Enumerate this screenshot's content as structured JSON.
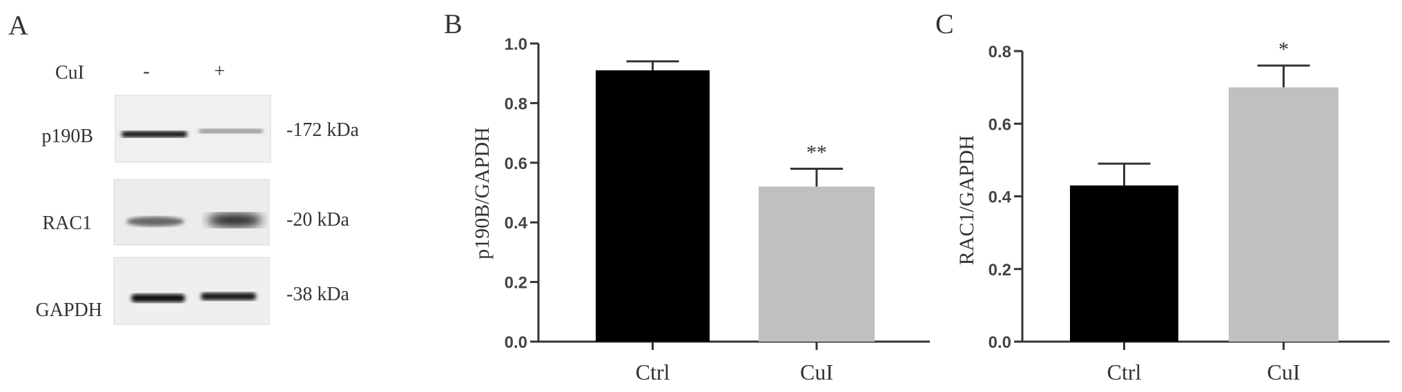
{
  "panel_a": {
    "letter": "A",
    "treatment_label": "CuI",
    "lanes": [
      "-",
      "+"
    ],
    "blots": [
      {
        "protein": "p190B",
        "marker": "-172 kDa"
      },
      {
        "protein": "RAC1",
        "marker": "-20 kDa"
      },
      {
        "protein": "GAPDH",
        "marker": "-38 kDa"
      }
    ]
  },
  "chart_data": [
    {
      "panel": "B",
      "type": "bar",
      "categories": [
        "Ctrl",
        "CuI"
      ],
      "values": [
        0.91,
        0.52
      ],
      "errors": [
        0.03,
        0.06
      ],
      "significance": [
        "",
        "**"
      ],
      "colors": [
        "#000000",
        "#c0c0c0"
      ],
      "ylabel": "p190B/GAPDH",
      "ylim": [
        0,
        1.0
      ],
      "yticks": [
        "0.0",
        "0.2",
        "0.4",
        "0.6",
        "0.8",
        "1.0"
      ],
      "grid": false
    },
    {
      "panel": "C",
      "type": "bar",
      "categories": [
        "Ctrl",
        "CuI"
      ],
      "values": [
        0.43,
        0.7
      ],
      "errors": [
        0.06,
        0.06
      ],
      "significance": [
        "",
        "*"
      ],
      "colors": [
        "#000000",
        "#c0c0c0"
      ],
      "ylabel": "RAC1/GAPDH",
      "ylim": [
        0,
        0.8
      ],
      "yticks": [
        "0.0",
        "0.2",
        "0.4",
        "0.6",
        "0.8"
      ],
      "grid": false
    }
  ]
}
